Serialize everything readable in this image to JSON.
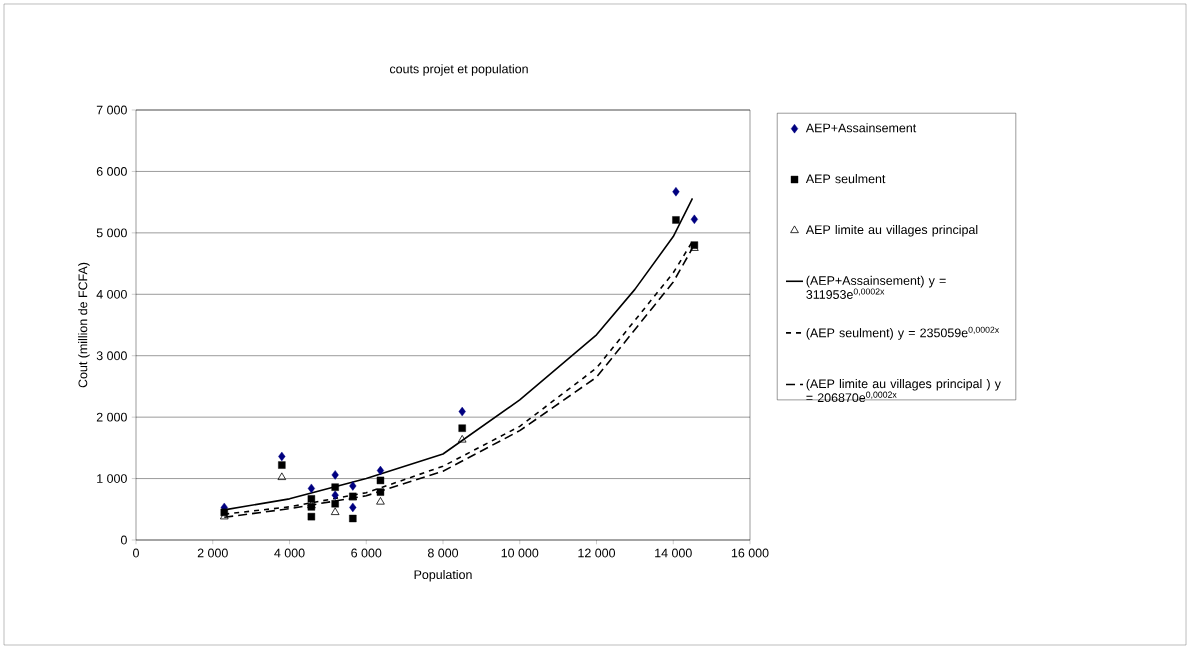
{
  "chart_data": {
    "type": "scatter",
    "title": "couts projet et population",
    "xlabel": "Population",
    "ylabel": "Cout (million de FCFA)",
    "xlim": [
      0,
      16000
    ],
    "ylim": [
      0,
      7000
    ],
    "xticks": [
      0,
      {
        "value": 2000,
        "label": "2 000"
      },
      {
        "value": 4000,
        "label": "4 000"
      },
      {
        "value": 6000,
        "label": "6 000"
      },
      {
        "value": 8000,
        "label": "8 000"
      },
      {
        "value": 10000,
        "label": "10 000"
      },
      {
        "value": 12000,
        "label": "12 000"
      },
      {
        "value": 14000,
        "label": "14 000"
      },
      {
        "value": 16000,
        "label": "16 000"
      }
    ],
    "yticks": [
      0,
      {
        "value": 1000,
        "label": "1 000"
      },
      {
        "value": 2000,
        "label": "2 000"
      },
      {
        "value": 3000,
        "label": "3 000"
      },
      {
        "value": 4000,
        "label": "4 000"
      },
      {
        "value": 5000,
        "label": "5 000"
      },
      {
        "value": 6000,
        "label": "6 000"
      },
      {
        "value": 7000,
        "label": "7 000"
      }
    ],
    "grid": "y",
    "legend": "right",
    "series": [
      {
        "name": "AEP+Assainsement",
        "marker": "diamond",
        "color": "#000080",
        "x": [
          2300,
          3800,
          4570,
          5190,
          5190,
          5650,
          5650,
          6370,
          8500,
          14070,
          14550
        ],
        "values": [
          530,
          1360,
          840,
          1060,
          730,
          880,
          530,
          1130,
          2090,
          5670,
          5220
        ]
      },
      {
        "name": "AEP seulment",
        "marker": "square",
        "color": "#000000",
        "x": [
          2300,
          3800,
          4570,
          4570,
          4570,
          5190,
          5190,
          5650,
          5650,
          6370,
          6370,
          8500,
          14070,
          14550
        ],
        "values": [
          450,
          1220,
          670,
          540,
          380,
          860,
          590,
          710,
          350,
          970,
          780,
          1820,
          5210,
          4800
        ]
      },
      {
        "name": "AEP limite au villages principal",
        "marker": "triangle",
        "color": "#000000",
        "x": [
          2300,
          3800,
          4570,
          5190,
          5650,
          6370,
          8500,
          14550
        ],
        "values": [
          380,
          1020,
          560,
          450,
          690,
          620,
          1630,
          4750
        ]
      },
      {
        "name": "(AEP+Assainsement) y = 311953e$^{0,0002x}$",
        "type": "line",
        "line_style": "solid",
        "color": "#000000",
        "x": [
          2300,
          4000,
          6000,
          8000,
          10000,
          12000,
          13000,
          14000,
          14500
        ],
        "values": [
          490,
          670,
          1000,
          1400,
          2280,
          3340,
          4080,
          4940,
          5560
        ]
      },
      {
        "name": "(AEP seulment) y = 235059e$^{0,0002x}$",
        "type": "line",
        "line_style": "dotted",
        "color": "#000000",
        "x": [
          2300,
          4000,
          6000,
          8000,
          10000,
          12000,
          14000,
          14500
        ],
        "values": [
          420,
          540,
          770,
          1200,
          1850,
          2800,
          4350,
          4860
        ]
      },
      {
        "name": "(AEP limite au villages principal ) y = 206870e$^{0,0002x}$",
        "type": "line",
        "line_style": "dashed",
        "color": "#000000",
        "x": [
          2300,
          4000,
          6000,
          8000,
          10000,
          12000,
          14000,
          14500
        ],
        "values": [
          370,
          510,
          720,
          1120,
          1780,
          2650,
          4200,
          4750
        ]
      }
    ]
  }
}
